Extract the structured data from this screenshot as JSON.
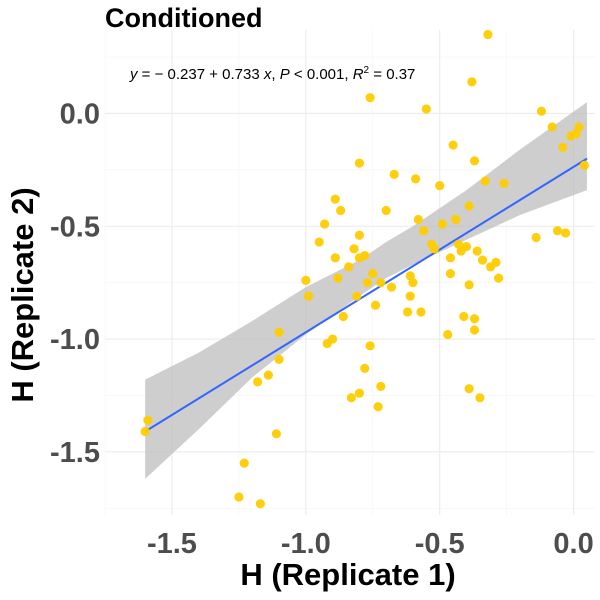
{
  "chart_data": {
    "type": "scatter",
    "title": "Conditioned",
    "xlabel": "H (Replicate 1)",
    "ylabel": "H (Replicate 2)",
    "xlim": [
      -1.75,
      0.08
    ],
    "ylim": [
      -1.78,
      0.37
    ],
    "x_ticks": [
      -1.5,
      -1.0,
      -0.5,
      0.0
    ],
    "x_tick_labels": [
      "-1.5",
      "-1.0",
      "-0.5",
      "0.0"
    ],
    "y_ticks": [
      -1.5,
      -1.0,
      -0.5,
      0.0
    ],
    "y_tick_labels": [
      "-1.5",
      "-1.0",
      "-0.5",
      "0.0"
    ],
    "grid": true,
    "equation": {
      "y": "y",
      "eq_body": " = − 0.237 + 0.733 ",
      "x": "x",
      "p_sep": ", ",
      "p": "P",
      "p_rel": " < 0.001, ",
      "r": "R",
      "r_sup": "2",
      "r_val": " = 0.37"
    },
    "regression": {
      "intercept": -0.237,
      "slope": 0.733,
      "x_range": [
        -1.6,
        0.05
      ],
      "ci_band": [
        {
          "x": -1.6,
          "lo": -1.62,
          "hi": -1.18
        },
        {
          "x": -1.4,
          "lo": -1.4,
          "hi": -1.06
        },
        {
          "x": -1.2,
          "lo": -1.17,
          "hi": -0.92
        },
        {
          "x": -1.0,
          "lo": -0.98,
          "hi": -0.77
        },
        {
          "x": -0.8,
          "lo": -0.81,
          "hi": -0.65
        },
        {
          "x": -0.7,
          "lo": -0.73,
          "hi": -0.57
        },
        {
          "x": -0.6,
          "lo": -0.67,
          "hi": -0.5
        },
        {
          "x": -0.4,
          "lo": -0.56,
          "hi": -0.34
        },
        {
          "x": -0.2,
          "lo": -0.45,
          "hi": -0.16
        },
        {
          "x": 0.05,
          "lo": -0.34,
          "hi": 0.05
        }
      ]
    },
    "points": [
      [
        -1.59,
        -1.36
      ],
      [
        -1.6,
        -1.41
      ],
      [
        -1.25,
        -1.7
      ],
      [
        -1.23,
        -1.55
      ],
      [
        -1.17,
        -1.73
      ],
      [
        -1.11,
        -1.42
      ],
      [
        -1.14,
        -1.16
      ],
      [
        -1.18,
        -1.19
      ],
      [
        -1.1,
        -0.97
      ],
      [
        -1.1,
        -1.09
      ],
      [
        -1.0,
        -0.74
      ],
      [
        -0.99,
        -0.81
      ],
      [
        -0.95,
        -0.57
      ],
      [
        -0.93,
        -0.49
      ],
      [
        -0.92,
        -1.02
      ],
      [
        -0.9,
        -1.0
      ],
      [
        -0.89,
        -0.38
      ],
      [
        -0.89,
        -0.64
      ],
      [
        -0.88,
        -0.73
      ],
      [
        -0.87,
        -0.43
      ],
      [
        -0.86,
        -0.9
      ],
      [
        -0.84,
        -0.68
      ],
      [
        -0.83,
        -1.26
      ],
      [
        -0.82,
        -0.6
      ],
      [
        -0.81,
        -0.81
      ],
      [
        -0.8,
        -0.22
      ],
      [
        -0.8,
        -0.64
      ],
      [
        -0.8,
        -0.54
      ],
      [
        -0.8,
        -1.24
      ],
      [
        -0.78,
        -1.13
      ],
      [
        -0.78,
        -0.63
      ],
      [
        -0.77,
        -0.75
      ],
      [
        -0.76,
        0.07
      ],
      [
        -0.76,
        -1.03
      ],
      [
        -0.75,
        -0.71
      ],
      [
        -0.74,
        -0.85
      ],
      [
        -0.73,
        -1.3
      ],
      [
        -0.72,
        -1.21
      ],
      [
        -0.72,
        -0.75
      ],
      [
        -0.7,
        -0.43
      ],
      [
        -0.68,
        -0.77
      ],
      [
        -0.67,
        -0.27
      ],
      [
        -0.62,
        -0.88
      ],
      [
        -0.61,
        -0.81
      ],
      [
        -0.61,
        -0.72
      ],
      [
        -0.6,
        -0.75
      ],
      [
        -0.59,
        -0.29
      ],
      [
        -0.58,
        -0.47
      ],
      [
        -0.57,
        -0.88
      ],
      [
        -0.56,
        -0.52
      ],
      [
        -0.55,
        0.02
      ],
      [
        -0.53,
        -0.58
      ],
      [
        -0.52,
        -0.6
      ],
      [
        -0.5,
        -0.32
      ],
      [
        -0.49,
        -0.49
      ],
      [
        -0.47,
        -0.98
      ],
      [
        -0.46,
        -0.64
      ],
      [
        -0.46,
        -0.71
      ],
      [
        -0.45,
        -0.14
      ],
      [
        -0.44,
        -0.47
      ],
      [
        -0.43,
        -0.58
      ],
      [
        -0.42,
        -0.61
      ],
      [
        -0.41,
        -0.9
      ],
      [
        -0.4,
        -0.59
      ],
      [
        -0.39,
        -0.76
      ],
      [
        -0.39,
        -0.41
      ],
      [
        -0.39,
        -1.22
      ],
      [
        -0.38,
        0.14
      ],
      [
        -0.37,
        -0.21
      ],
      [
        -0.37,
        -0.91
      ],
      [
        -0.37,
        -0.96
      ],
      [
        -0.36,
        -0.61
      ],
      [
        -0.35,
        -1.26
      ],
      [
        -0.34,
        -0.65
      ],
      [
        -0.33,
        -0.3
      ],
      [
        -0.32,
        0.35
      ],
      [
        -0.31,
        -0.68
      ],
      [
        -0.29,
        -0.66
      ],
      [
        -0.28,
        -0.73
      ],
      [
        -0.26,
        -0.31
      ],
      [
        -0.12,
        0.01
      ],
      [
        -0.08,
        -0.06
      ],
      [
        -0.06,
        -0.52
      ],
      [
        -0.04,
        -0.15
      ],
      [
        -0.03,
        -0.53
      ],
      [
        -0.01,
        -0.1
      ],
      [
        -0.14,
        -0.55
      ],
      [
        0.01,
        -0.09
      ],
      [
        0.02,
        -0.06
      ],
      [
        0.04,
        -0.23
      ]
    ]
  },
  "colors": {
    "points": "#FFCC00",
    "line": "#3366FF",
    "band": "#BEBEBE",
    "grid_major": "#EBEBEB",
    "grid_minor": "#F5F5F5",
    "tick_text": "#4D4D4D"
  }
}
